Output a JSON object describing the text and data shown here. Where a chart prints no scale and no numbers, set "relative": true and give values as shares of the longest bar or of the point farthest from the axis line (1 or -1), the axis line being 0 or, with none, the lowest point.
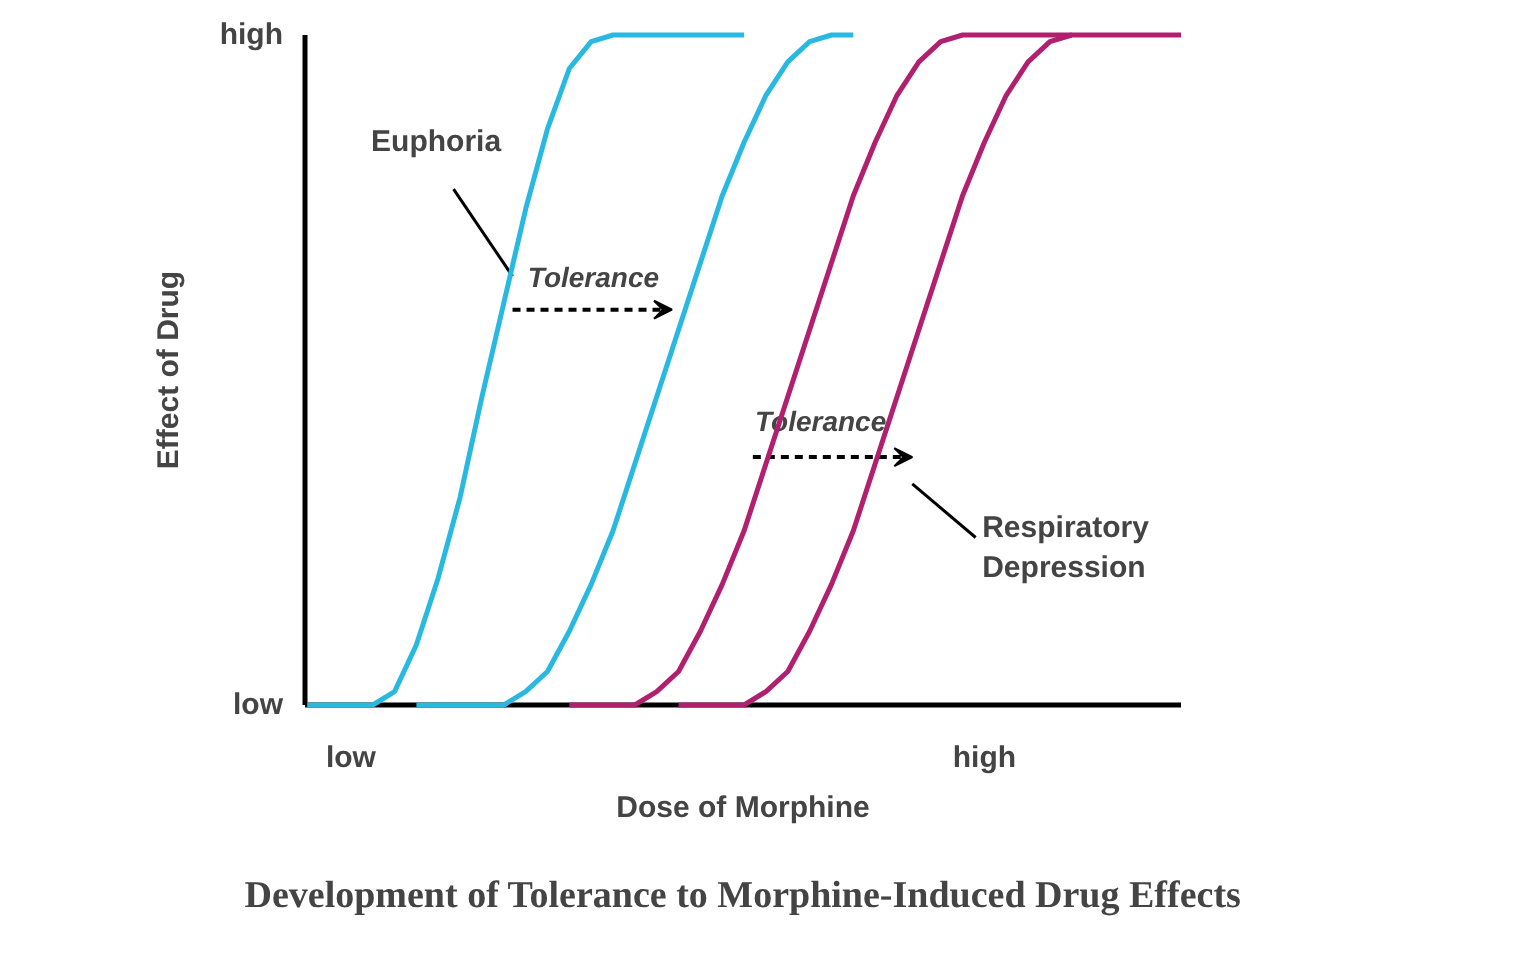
{
  "chart_data": {
    "type": "line",
    "title": "Development of Tolerance to Morphine-Induced Drug Effects",
    "xlabel": "Dose of Morphine",
    "ylabel": "Effect of Drug",
    "relative": true,
    "line_style": "solid",
    "categories": [
      null,
      null,
      "low",
      null,
      null,
      null,
      null,
      null,
      null,
      null,
      null,
      null,
      null,
      null,
      null,
      null,
      null,
      null,
      null,
      null,
      null,
      null,
      null,
      null,
      null,
      null,
      null,
      null,
      null,
      null,
      null,
      "high",
      null,
      null,
      null,
      null,
      null,
      null,
      null,
      null,
      null
    ],
    "series": [
      {
        "color": "#29b8e0",
        "values": [
          0,
          0,
          0,
          0,
          0.02,
          0.09,
          0.19,
          0.31,
          0.46,
          0.6,
          0.74,
          0.86,
          0.95,
          0.99,
          1,
          1,
          1,
          1,
          1,
          1,
          1,
          null,
          null,
          null,
          null,
          null,
          null,
          null,
          null,
          null,
          null,
          null,
          null,
          null,
          null,
          null,
          null,
          null,
          null,
          null,
          null
        ]
      },
      {
        "color": "#29b8e0",
        "values": [
          null,
          null,
          null,
          null,
          null,
          0,
          0,
          0,
          0,
          0,
          0.02,
          0.05,
          0.11,
          0.18,
          0.26,
          0.36,
          0.46,
          0.56,
          0.66,
          0.76,
          0.84,
          0.91,
          0.96,
          0.99,
          1,
          1,
          null,
          null,
          null,
          null,
          null,
          null,
          null,
          null,
          null,
          null,
          null,
          null,
          null,
          null,
          null
        ]
      },
      {
        "color": "#b0206e",
        "values": [
          null,
          null,
          null,
          null,
          null,
          null,
          null,
          null,
          null,
          null,
          null,
          null,
          0,
          0,
          0,
          0,
          0.02,
          0.05,
          0.11,
          0.18,
          0.26,
          0.36,
          0.46,
          0.56,
          0.66,
          0.76,
          0.84,
          0.91,
          0.96,
          0.99,
          1,
          1,
          1,
          1,
          1,
          1,
          null,
          null,
          null,
          null,
          null
        ]
      },
      {
        "color": "#b0206e",
        "values": [
          null,
          null,
          null,
          null,
          null,
          null,
          null,
          null,
          null,
          null,
          null,
          null,
          null,
          null,
          null,
          null,
          null,
          0,
          0,
          0,
          0,
          0.02,
          0.05,
          0.11,
          0.18,
          0.26,
          0.36,
          0.46,
          0.56,
          0.66,
          0.76,
          0.84,
          0.91,
          0.96,
          0.99,
          1,
          1,
          1,
          1,
          1,
          1
        ]
      }
    ],
    "annotations": [
      "Euphoria",
      "Tolerance",
      "Tolerance",
      "Respiratory\nDepression",
      "low",
      "high"
    ]
  }
}
